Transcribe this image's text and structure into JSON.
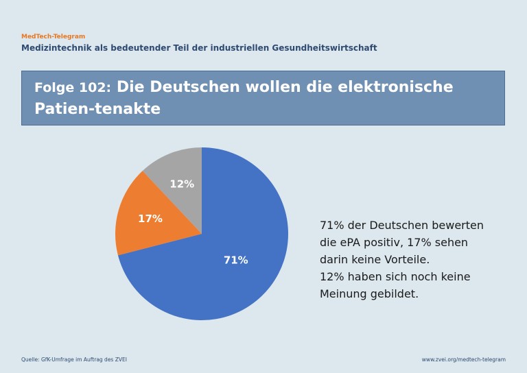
{
  "header": {
    "brand": "MedTech-Telegram",
    "subtitle": "Medizintechnik als bedeutender Teil der industriellen Gesundheitswirtschaft"
  },
  "title": {
    "prefix": "Folge 102:",
    "main": "Die Deutschen wollen die elektronische Patien-tenakte"
  },
  "chart_data": {
    "type": "pie",
    "title": "",
    "slices": [
      {
        "label": "71%",
        "value": 71,
        "color": "#4472c4"
      },
      {
        "label": "17%",
        "value": 17,
        "color": "#ed7d31"
      },
      {
        "label": "12%",
        "value": 12,
        "color": "#a5a5a5"
      }
    ],
    "start": "12 o'clock",
    "direction": "clockwise",
    "labels_inside": true
  },
  "description": [
    "71% der Deutschen bewerten",
    "die ePA positiv, 17% sehen",
    "darin keine Vorteile.",
    "12% haben sich noch keine",
    "Meinung gebildet."
  ],
  "footer": {
    "source": "Quelle: GfK-Umfrage im Auftrag des ZVEI",
    "url": "www.zvei.org/medtech-telegram"
  },
  "colors": {
    "background": "#dce7ee",
    "title_box": "#7090b3",
    "brand_accent": "#e87722",
    "heading_text": "#2e4a70"
  }
}
